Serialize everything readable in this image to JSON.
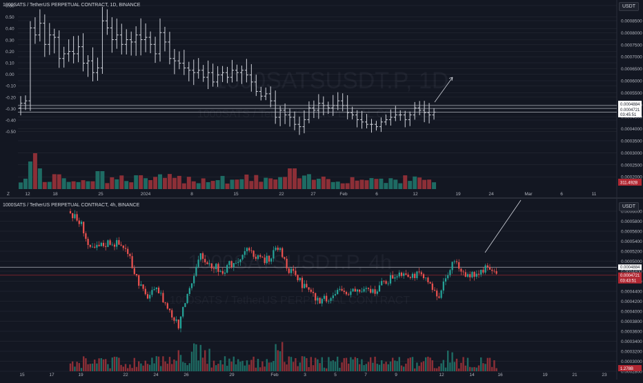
{
  "top_pane": {
    "title": "1000SATS / TetherUS PERPETUAL CONTRACT, 1D, BINANCE",
    "currency": "USDT",
    "watermark_big": "1000SATSUSDT.P, 1D",
    "watermark_small": "1000SATS / TetherUS PERPETUAL CONTRACT",
    "price_label_1": "0.0004884",
    "price_label_2": "0.0004721",
    "countdown": "03:45:51",
    "volume_label": "311.492B",
    "corner_label": "Z",
    "colors": {
      "up": "#26a69a",
      "down": "#ef5350",
      "volume_up": "#1e6b63",
      "volume_down": "#8c2f37",
      "bar": "#d1d4dc"
    }
  },
  "bottom_pane": {
    "title": "1000SATS / TetherUS PERPETUAL CONTRACT, 4h, BINANCE",
    "currency": "USDT",
    "watermark_big": "1000SATSUSDT.P, 4h",
    "watermark_small": "1000SATS / TetherUS PERPETUAL CONTRACT",
    "price_label_1": "0.0004884",
    "price_label_2": "0.0004721",
    "countdown": "03:43:51",
    "volume_label": "1.278B"
  },
  "chart_data": [
    {
      "type": "ohlc",
      "title": "1000SATS / TetherUS PERPETUAL CONTRACT, 1D, BINANCE",
      "left_axis_ticks": [
        "0.60",
        "0.50",
        "0.40",
        "0.30",
        "0.20",
        "0.10",
        "0.00",
        "-0.10",
        "-0.20",
        "-0.30",
        "-0.40",
        "-0.50"
      ],
      "right_axis_ticks": [
        "0.0008500",
        "0.0008000",
        "0.0007500",
        "0.0007000",
        "0.0006500",
        "0.0006000",
        "0.0005500",
        "0.0005000",
        "0.0004500",
        "0.0004000",
        "0.0003500",
        "0.0003000",
        "0.0002500",
        "0.0002000"
      ],
      "x_ticks": [
        "12",
        "18",
        "25",
        "2024",
        "8",
        "15",
        "22",
        "27",
        "Feb",
        "6",
        "12",
        "19",
        "24",
        "Mar",
        "6",
        "11"
      ],
      "ylim": [
        0.00018,
        0.00089
      ],
      "close": [
        0.00051,
        0.00052,
        0.00083,
        0.0008,
        0.00085,
        0.00076,
        0.0008,
        0.00079,
        0.0007,
        0.00072,
        0.00073,
        0.00072,
        0.00075,
        0.00068,
        0.00069,
        0.00064,
        0.00066,
        0.00086,
        0.00083,
        0.00078,
        0.0008,
        0.00076,
        0.00078,
        0.00077,
        0.0008,
        0.00078,
        0.00079,
        0.00076,
        0.00072,
        0.00081,
        0.00077,
        0.0007,
        0.00069,
        0.00068,
        0.00066,
        0.00065,
        0.00064,
        0.00065,
        0.00062,
        0.00064,
        0.0006,
        0.00063,
        0.00064,
        0.00062,
        0.00065,
        0.00064,
        0.00065,
        0.00063,
        0.0006,
        0.00056,
        0.00054,
        0.00055,
        0.00052,
        0.00045,
        0.00048,
        0.00046,
        0.00045,
        0.00042,
        0.00041,
        0.00044,
        0.00049,
        0.00048,
        0.00051,
        0.0005,
        0.00049,
        0.0005,
        0.00052,
        0.0005,
        0.00047,
        0.00046,
        0.00044,
        0.00043,
        0.00042,
        0.00042,
        0.00041,
        0.00043,
        0.00044,
        0.00045,
        0.00046,
        0.00046,
        0.00044,
        0.00046,
        0.00049,
        0.00048,
        0.00047,
        0.00046,
        0.000472
      ],
      "annotation": "arrow-up-right",
      "horizontal_levels": [
        0.0005,
        0.000488,
        0.000472
      ]
    },
    {
      "type": "candlestick",
      "title": "1000SATS / TetherUS PERPETUAL CONTRACT, 4h, BINANCE",
      "right_axis_ticks": [
        "0.0006000",
        "0.0005800",
        "0.0005600",
        "0.0005400",
        "0.0005200",
        "0.0005000",
        "0.0004800",
        "0.0004600",
        "0.0004400",
        "0.0004200",
        "0.0004000",
        "0.0003800",
        "0.0003600",
        "0.0003400",
        "0.0003200",
        "0.0003000",
        "0.0002800"
      ],
      "x_ticks": [
        "15",
        "17",
        "19",
        "22",
        "24",
        "26",
        "29",
        "Feb",
        "3",
        "5",
        "7",
        "9",
        "12",
        "14",
        "16",
        "19",
        "21",
        "23"
      ],
      "ylim": [
        0.00027,
        0.00061
      ],
      "annotation": "arrow-up-right",
      "horizontal_levels": [
        0.000488,
        0.000472
      ]
    }
  ]
}
